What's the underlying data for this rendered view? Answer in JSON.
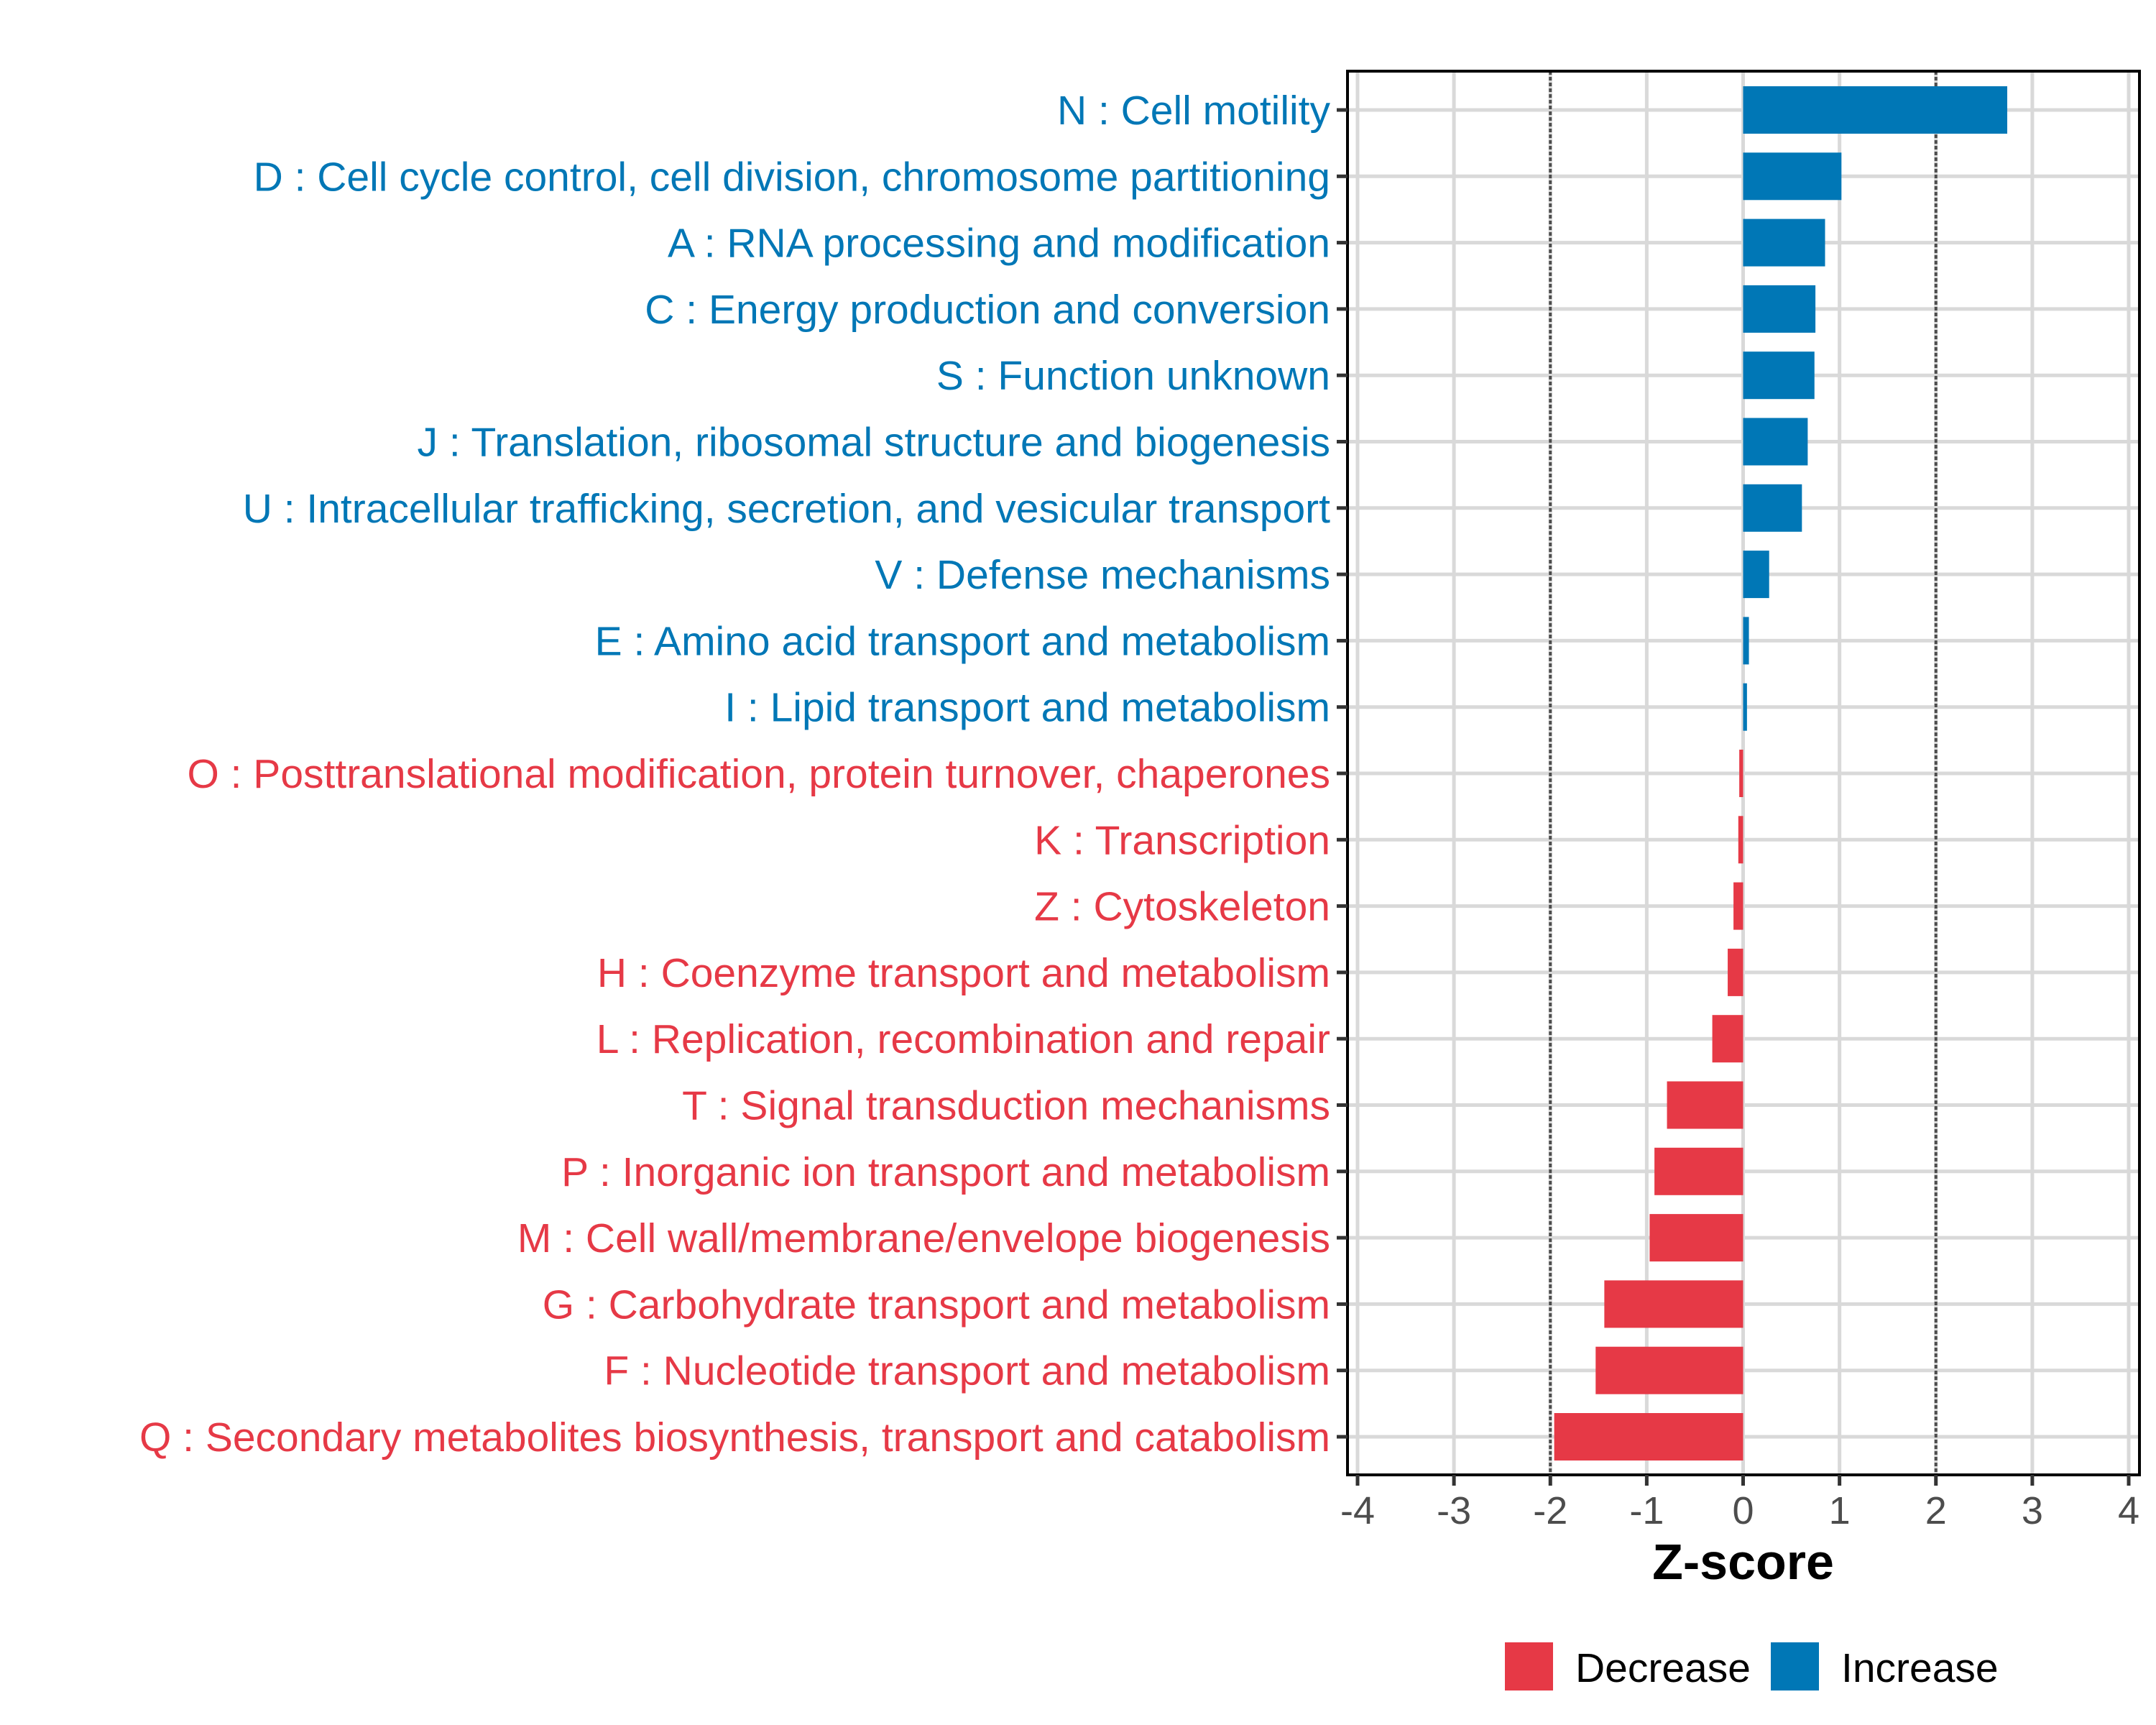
{
  "chart_data": {
    "type": "bar",
    "orientation": "horizontal",
    "title": "",
    "xlabel": "Z-score",
    "ylabel": "",
    "xlim": [
      -4.1,
      4.1
    ],
    "xticks": [
      -4,
      -3,
      -2,
      -1,
      0,
      1,
      2,
      3,
      4
    ],
    "xtick_labels": [
      "-4",
      "-3",
      "-2",
      "-1",
      "0",
      "1",
      "2",
      "3",
      "4"
    ],
    "reference_lines": [
      -2,
      2
    ],
    "grid": true,
    "legend_position": "bottom",
    "colors": {
      "Increase": "#0077B6",
      "Decrease": "#E63946"
    },
    "legend": [
      {
        "label": "Decrease",
        "color": "#E63946"
      },
      {
        "label": "Increase",
        "color": "#0077B6"
      }
    ],
    "categories": [
      "N : Cell motility",
      "D : Cell cycle control, cell division, chromosome partitioning",
      "A : RNA processing and modification",
      "C : Energy production and conversion",
      "S : Function unknown",
      "J : Translation, ribosomal structure and biogenesis",
      "U : Intracellular trafficking, secretion, and vesicular transport",
      "V : Defense mechanisms",
      "E : Amino acid transport and metabolism",
      "I : Lipid transport and metabolism",
      "O : Posttranslational modification, protein turnover, chaperones",
      "K : Transcription",
      "Z : Cytoskeleton",
      "H : Coenzyme transport and metabolism",
      "L : Replication, recombination and repair",
      "T : Signal transduction mechanisms",
      "P : Inorganic ion transport and metabolism",
      "M : Cell wall/membrane/envelope biogenesis",
      "G : Carbohydrate transport and metabolism",
      "F : Nucleotide transport and metabolism",
      "Q : Secondary metabolites biosynthesis, transport and catabolism"
    ],
    "values": [
      2.74,
      1.02,
      0.85,
      0.75,
      0.74,
      0.67,
      0.61,
      0.27,
      0.06,
      0.04,
      -0.04,
      -0.05,
      -0.1,
      -0.16,
      -0.32,
      -0.79,
      -0.92,
      -0.97,
      -1.44,
      -1.53,
      -1.96
    ],
    "groups": [
      "Increase",
      "Increase",
      "Increase",
      "Increase",
      "Increase",
      "Increase",
      "Increase",
      "Increase",
      "Increase",
      "Increase",
      "Decrease",
      "Decrease",
      "Decrease",
      "Decrease",
      "Decrease",
      "Decrease",
      "Decrease",
      "Decrease",
      "Decrease",
      "Decrease",
      "Decrease"
    ]
  }
}
